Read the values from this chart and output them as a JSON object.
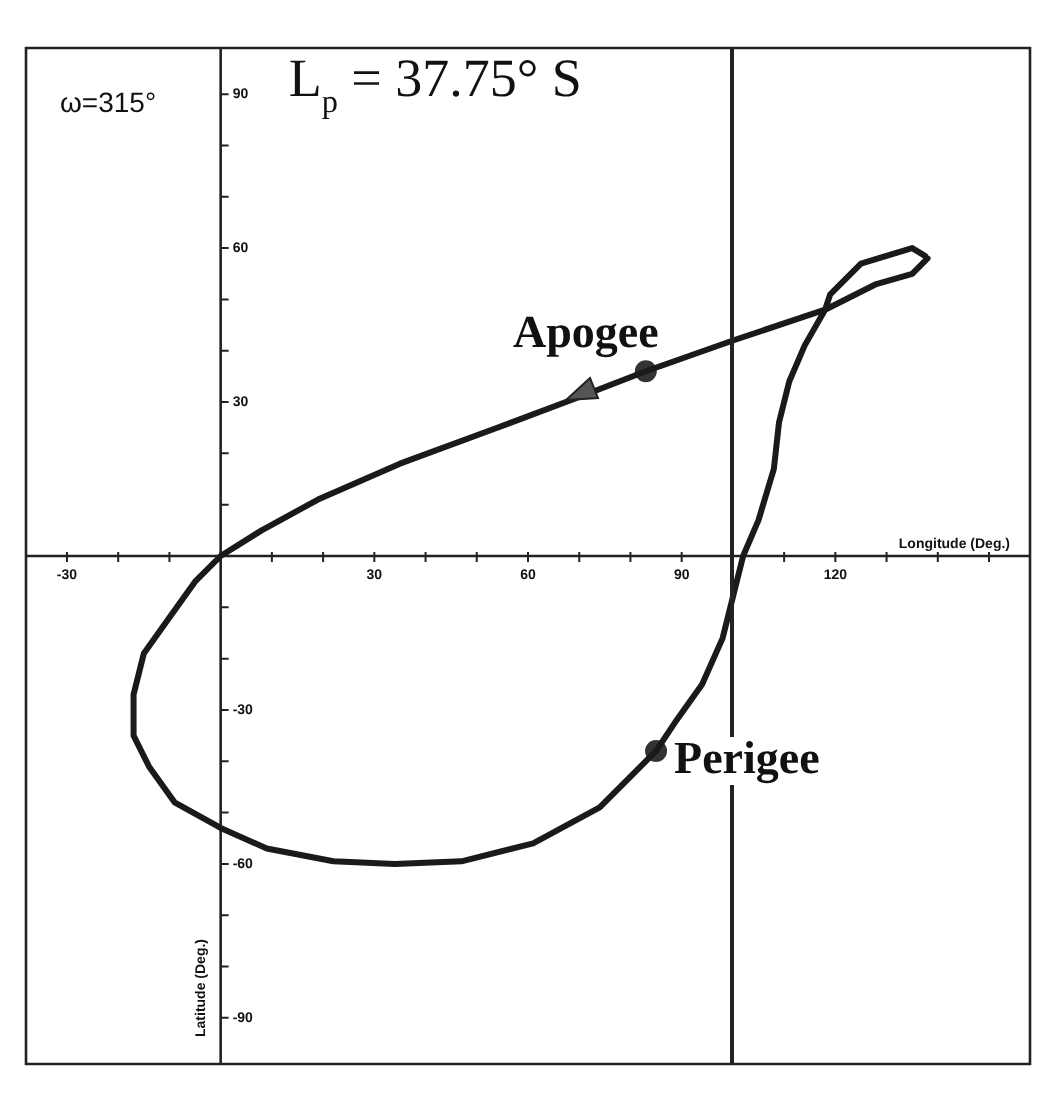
{
  "chart_data": {
    "type": "line",
    "title": "L$_{p}$ = 37.75° S",
    "xlabel": "Longitude (Deg.)",
    "ylabel": "Latitude (Deg.)",
    "annotations": [
      "ω=315°",
      {
        "text": "Apogee",
        "x": 83,
        "y": 36
      },
      {
        "text": "Perigee",
        "x": 85,
        "y": -38
      }
    ],
    "series": [
      {
        "color": "#1a1a1a",
        "x": [
          138,
          135,
          128,
          118,
          100,
          83,
          70,
          54,
          35,
          19,
          8,
          0,
          -5,
          -10,
          -15,
          -17,
          -17,
          -14,
          -9,
          0,
          9,
          22,
          34,
          47,
          61,
          74,
          85,
          89,
          94,
          98,
          100,
          102,
          105,
          108,
          109,
          111,
          114,
          118,
          119,
          125,
          135,
          137.5
        ],
        "values": [
          58,
          55,
          53,
          48,
          42,
          36,
          31,
          25,
          18,
          11,
          5,
          0,
          -5,
          -12,
          -19,
          -27,
          -35,
          -41,
          -48,
          -53,
          -57,
          -59.5,
          -60,
          -59.5,
          -56,
          -49,
          -38,
          -32,
          -25,
          -16,
          -8,
          0,
          7,
          17,
          26,
          34,
          41,
          48,
          51,
          57,
          60,
          58.5
        ]
      },
      {
        "type": "scatter",
        "color": "#333333",
        "marker": "circle",
        "x": [
          83,
          85
        ],
        "values": [
          36,
          -38
        ]
      }
    ],
    "xlim": [
      -38,
      158
    ],
    "ylim": [
      -99,
      99
    ],
    "xticks": [
      -30,
      {
        "value": -20,
        "label": null
      },
      {
        "value": -10,
        "label": null
      },
      {
        "value": 0,
        "label": null
      },
      {
        "value": 10,
        "label": null
      },
      {
        "value": 20,
        "label": null
      },
      30,
      {
        "value": 40,
        "label": null
      },
      {
        "value": 50,
        "label": null
      },
      60,
      {
        "value": 70,
        "label": null
      },
      {
        "value": 80,
        "label": null
      },
      90,
      {
        "value": 100,
        "label": null
      },
      {
        "value": 110,
        "label": null
      },
      120,
      {
        "value": 130,
        "label": null
      },
      {
        "value": 140,
        "label": null
      },
      {
        "value": 150,
        "label": null
      }
    ],
    "yticks": [
      -90,
      {
        "value": -80,
        "label": null
      },
      {
        "value": -70,
        "label": null
      },
      -60,
      {
        "value": -50,
        "label": null
      },
      {
        "value": -40,
        "label": null
      },
      -30,
      {
        "value": -20,
        "label": null
      },
      {
        "value": -10,
        "label": null
      },
      {
        "value": 0,
        "label": null
      },
      {
        "value": 10,
        "label": null
      },
      {
        "value": 20,
        "label": null
      },
      30,
      {
        "value": 40,
        "label": null
      },
      {
        "value": 50,
        "label": null
      },
      60,
      {
        "value": 70,
        "label": null
      },
      {
        "value": 80,
        "label": null
      },
      90
    ],
    "ref_lines": [
      {
        "axis": "x",
        "value": 100,
        "color": "#222222"
      }
    ]
  }
}
